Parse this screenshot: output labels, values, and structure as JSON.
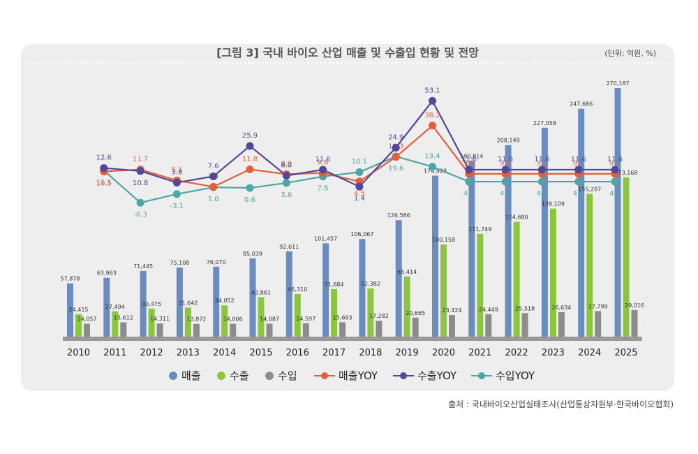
{
  "header": {
    "title": "[그림 3] 국내 바이오 산업 매출 및 수출입 현황 및 전망",
    "unit": "(단위: 억원, %)"
  },
  "source": "출처 : 국내바이오산업실태조사(산업통상자원부·한국바이오협회)",
  "colors": {
    "sales": "#6b8cbf",
    "export": "#8cc63f",
    "import": "#8c8c8c",
    "sales_yoy": "#e35f3b",
    "export_yoy": "#52479a",
    "import_yoy": "#4fa5a5",
    "panel": "#eeeeee"
  },
  "chart_data": {
    "type": "bar",
    "categories": [
      "2010",
      "2011",
      "2012",
      "2013",
      "2014",
      "2015",
      "2016",
      "2017",
      "2018",
      "2019",
      "2020",
      "2021",
      "2022",
      "2023",
      "2024",
      "2025"
    ],
    "series": [
      {
        "name": "매출",
        "values": [
          57878,
          63963,
          71445,
          75108,
          76070,
          85039,
          92611,
          101457,
          106067,
          126586,
          174923,
          190814,
          208149,
          227058,
          247686,
          270187
        ],
        "labels": [
          "57,878",
          "63,963",
          "71,445",
          "75,108",
          "76,070",
          "85,039",
          "92,611",
          "101,457",
          "106,067",
          "126,586",
          "174,923",
          "190,814",
          "208,149",
          "227,058",
          "247,686",
          "270,187"
        ]
      },
      {
        "name": "수출",
        "values": [
          24415,
          27494,
          30475,
          31642,
          34052,
          42861,
          46310,
          51684,
          52382,
          65414,
          100158,
          111749,
          124680,
          139109,
          155207,
          173168
        ],
        "labels": [
          "24,415",
          "27,494",
          "30,475",
          "31,642",
          "34,052",
          "42,861",
          "46,310",
          "51,684",
          "52,382",
          "65,414",
          "100,158",
          "111,749",
          "124,680",
          "139,109",
          "155,207",
          "173,168"
        ]
      },
      {
        "name": "수입",
        "values": [
          14057,
          15612,
          14311,
          13872,
          14006,
          14087,
          14597,
          15693,
          17282,
          20665,
          23424,
          24449,
          25518,
          26634,
          27799,
          29016
        ],
        "labels": [
          "14,057",
          "15,612",
          "14,311",
          "13,872",
          "14,006",
          "14,087",
          "14,597",
          "15,693",
          "17,282",
          "20,665",
          "23,424",
          "24,449",
          "25,518",
          "26,634",
          "27,799",
          "29,016"
        ]
      }
    ],
    "yoy_series": [
      {
        "name": "매출YOY",
        "values": [
          10.5,
          11.7,
          5.1,
          1.3,
          11.8,
          8.9,
          9.6,
          4.5,
          19.3,
          38.2,
          9.1,
          9.1,
          9.1,
          9.1,
          9.1
        ],
        "labels": [
          "10.5",
          "11.7",
          "5.1",
          "1.3",
          "11.8",
          "8.9",
          "9.6",
          "4.5",
          "19.3",
          "38.2",
          "9.1",
          "9.1",
          "9.1",
          "9.1",
          "9.1"
        ]
      },
      {
        "name": "수출YOY",
        "values": [
          12.6,
          10.8,
          3.8,
          7.6,
          25.9,
          8.0,
          11.6,
          1.4,
          24.9,
          53.1,
          11.6,
          11.6,
          11.6,
          11.6,
          11.6
        ],
        "labels": [
          "12.6",
          "10.8",
          "3.8",
          "7.6",
          "25.9",
          "8.0",
          "11.6",
          "1.4",
          "24.9",
          "53.1",
          "11.6",
          "11.6",
          "11.6",
          "11.6",
          "11.6"
        ]
      },
      {
        "name": "수입YOY",
        "values": [
          11.1,
          -8.3,
          -3.1,
          1.0,
          0.6,
          3.6,
          7.5,
          10.1,
          19.6,
          13.4,
          4.4,
          4.4,
          4.4,
          4.4,
          4.4
        ],
        "labels": [
          "11.1",
          "-8.3",
          "-3.1",
          "1.0",
          "0.6",
          "3.6",
          "7.5",
          "10.1",
          "19.6",
          "13.4",
          "4.4",
          "4.4",
          "4.4",
          "4.4",
          "4.4"
        ]
      }
    ],
    "legend": [
      "매출",
      "수출",
      "수입",
      "매출YOY",
      "수출YOY",
      "수입YOY"
    ],
    "legend_position": "bottom",
    "grid": false
  }
}
